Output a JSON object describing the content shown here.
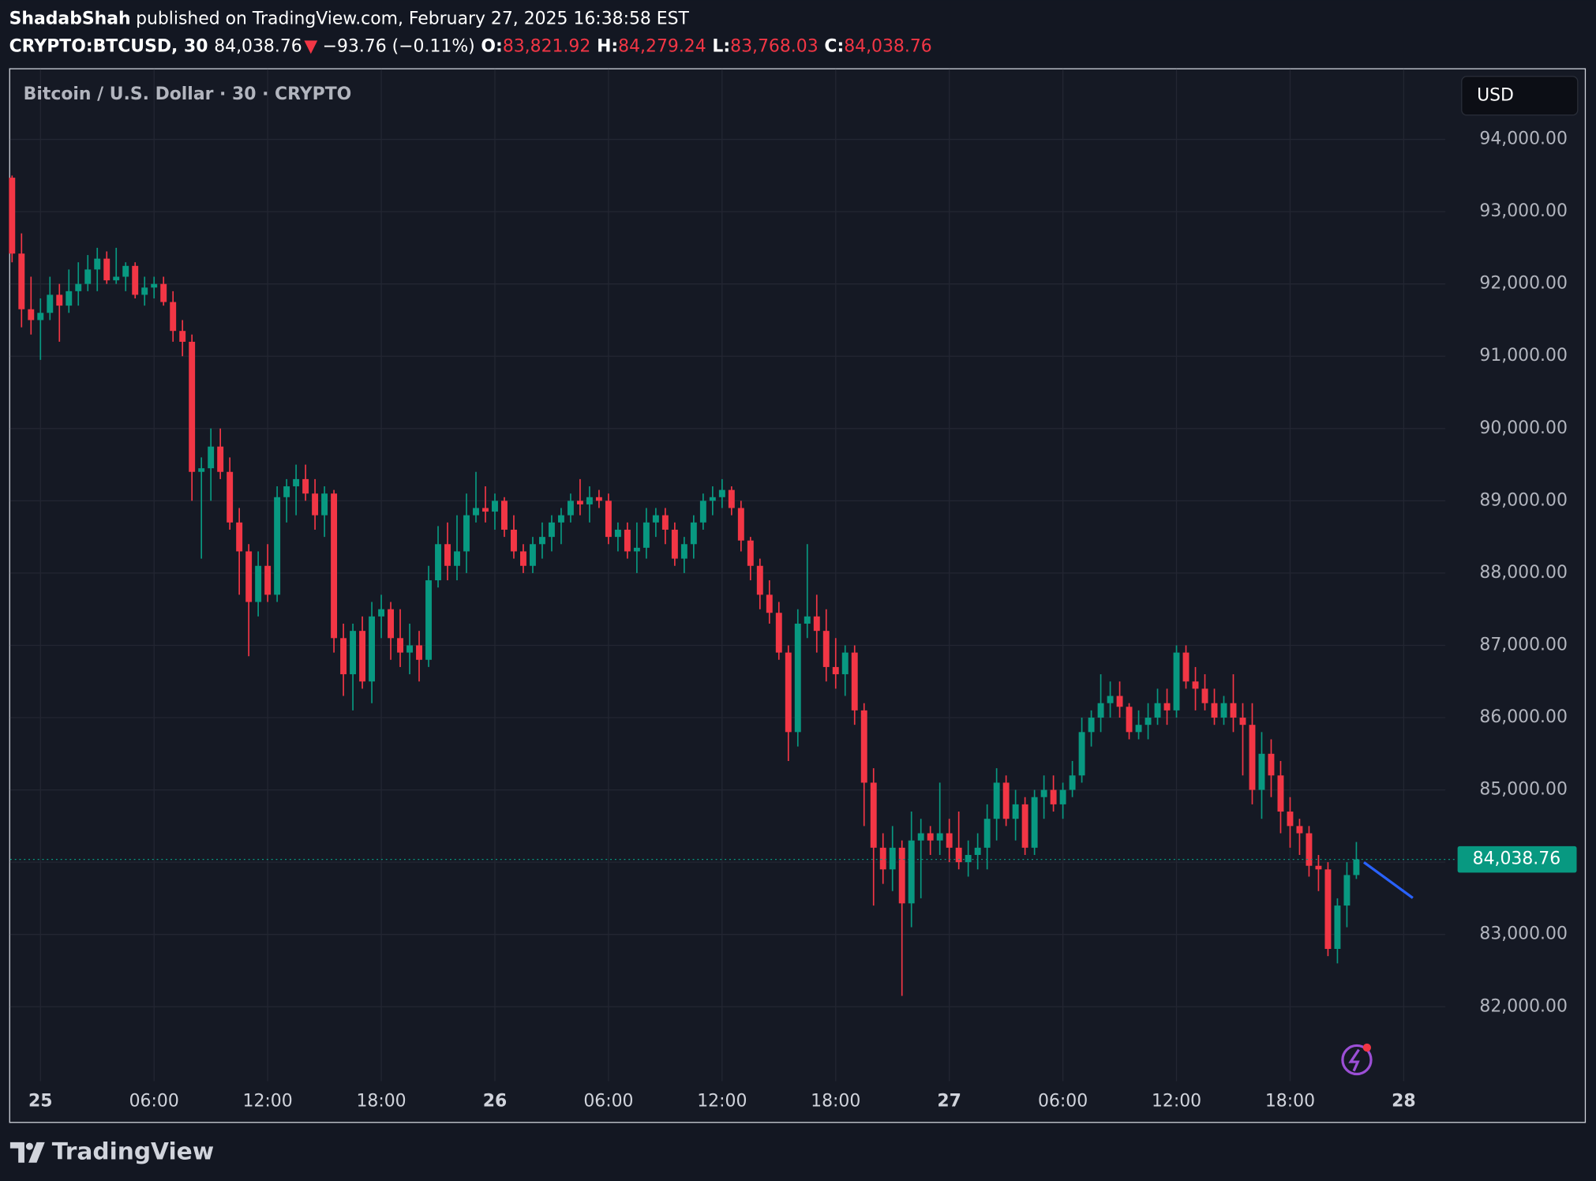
{
  "header": {
    "author": "ShadabShah",
    "published": "published on TradingView.com, February 27, 2025 16:38:58 EST",
    "symbol": "CRYPTO:BTCUSD, 30",
    "price": "84,038.76",
    "arrow": "▼",
    "change": "−93.76 (−0.11%)",
    "o_label": "O:",
    "o": "83,821.92",
    "h_label": "H:",
    "h": "84,279.24",
    "l_label": "L:",
    "l": "83,768.03",
    "c_label": "C:",
    "c": "84,038.76"
  },
  "chart_data": {
    "type": "candlestick",
    "title": "Bitcoin / U.S. Dollar · 30 · CRYPTO",
    "currency": "USD",
    "up_color": "#089981",
    "down_color": "#f23645",
    "grid": true,
    "last_price_label": "84,038.76",
    "open": [
      93470,
      92420,
      91650,
      91500,
      91600,
      91850,
      91700,
      91900,
      92000,
      92200,
      92350,
      92050,
      92100,
      92250,
      91850,
      91950,
      92000,
      91750,
      91350,
      91200,
      89400,
      89450,
      89750,
      89400,
      88700,
      88300,
      87600,
      88100,
      87700,
      89050,
      89200,
      89300,
      89100,
      88800,
      89100,
      87100,
      86600,
      87200,
      86500,
      87400,
      87500,
      87100,
      86900,
      87000,
      86800,
      87900,
      88400,
      88100,
      88300,
      88800,
      88900,
      88850,
      89000,
      88600,
      88300,
      88100,
      88400,
      88500,
      88700,
      88800,
      89000,
      88950,
      89050,
      89000,
      88500,
      88600,
      88300,
      88350,
      88700,
      88800,
      88600,
      88200,
      88400,
      88700,
      89000,
      89050,
      89150,
      88900,
      88450,
      88100,
      87700,
      87450,
      86900,
      85800,
      87300,
      87400,
      87200,
      86700,
      86600,
      86900,
      86100,
      85100,
      84200,
      83900,
      84200,
      83430,
      84300,
      84400,
      84300,
      84400,
      84200,
      84000,
      84100,
      84200,
      84600,
      85100,
      84600,
      84800,
      84200,
      84900,
      85000,
      84800,
      85000,
      85200,
      85800,
      86000,
      86200,
      86300,
      86150,
      85800,
      85900,
      86000,
      86200,
      86100,
      86900,
      86500,
      86400,
      86200,
      86000,
      86200,
      86000,
      85900,
      85000,
      85500,
      85200,
      84700,
      84500,
      84400,
      83950,
      83900,
      82800,
      83400,
      83821.92
    ],
    "high": [
      93500,
      92700,
      92100,
      91800,
      92100,
      92000,
      92200,
      92300,
      92400,
      92500,
      92450,
      92500,
      92300,
      92300,
      92100,
      92100,
      92100,
      91900,
      91500,
      91300,
      89600,
      90000,
      90000,
      89600,
      88900,
      88400,
      88300,
      88400,
      89200,
      89300,
      89500,
      89500,
      89300,
      89200,
      89150,
      87300,
      87300,
      87400,
      87600,
      87700,
      87600,
      87500,
      87300,
      87200,
      88100,
      88650,
      88700,
      88800,
      89100,
      89400,
      89200,
      89100,
      89050,
      88800,
      88400,
      88500,
      88700,
      88800,
      88900,
      89100,
      89300,
      89200,
      89150,
      89100,
      88700,
      88700,
      88700,
      88900,
      88900,
      88900,
      88700,
      88500,
      88800,
      89100,
      89200,
      89300,
      89200,
      89000,
      88500,
      88200,
      87900,
      87600,
      87000,
      87500,
      88400,
      87700,
      87500,
      87100,
      87000,
      87000,
      86200,
      85300,
      84400,
      84500,
      84300,
      84700,
      84600,
      84500,
      85100,
      84600,
      84700,
      84300,
      84400,
      84800,
      85300,
      85200,
      85000,
      84900,
      85000,
      85200,
      85200,
      85100,
      85400,
      86000,
      86100,
      86600,
      86500,
      86500,
      86200,
      86100,
      86200,
      86400,
      86400,
      87000,
      87000,
      86700,
      86600,
      86400,
      86300,
      86600,
      86200,
      86200,
      85800,
      85700,
      85400,
      84900,
      84600,
      84500,
      84100,
      84000,
      83500,
      84000,
      84279.24
    ],
    "low": [
      92300,
      91400,
      91300,
      90950,
      91500,
      91200,
      91600,
      91700,
      91900,
      91900,
      92000,
      92000,
      91900,
      91800,
      91700,
      91800,
      91700,
      91200,
      91000,
      89000,
      88200,
      89000,
      89300,
      88600,
      87700,
      86850,
      87400,
      87600,
      87600,
      88700,
      88800,
      89000,
      88600,
      88500,
      86900,
      86300,
      86100,
      86400,
      86200,
      87100,
      86800,
      86700,
      86600,
      86500,
      86700,
      87800,
      87900,
      87900,
      88000,
      88700,
      88700,
      88600,
      88500,
      88200,
      88000,
      88000,
      88200,
      88300,
      88400,
      88700,
      88800,
      88700,
      88900,
      88400,
      88300,
      88200,
      88000,
      88200,
      88500,
      88400,
      88100,
      88000,
      88200,
      88600,
      88800,
      88900,
      88800,
      88300,
      87900,
      87500,
      87300,
      86800,
      85400,
      85600,
      87100,
      86900,
      86500,
      86400,
      86300,
      85900,
      84500,
      83400,
      83700,
      83600,
      82150,
      83100,
      83500,
      84100,
      84100,
      84000,
      83900,
      83800,
      83900,
      83900,
      84300,
      84500,
      84300,
      84100,
      84100,
      84600,
      84700,
      84600,
      84900,
      85100,
      85600,
      85800,
      86000,
      86000,
      85700,
      85700,
      85700,
      85900,
      85900,
      86000,
      86400,
      86100,
      86100,
      85900,
      85900,
      85800,
      85200,
      84800,
      84600,
      84900,
      84400,
      84200,
      84100,
      83800,
      83600,
      82700,
      82600,
      83100,
      83768.03
    ],
    "close": [
      92420,
      91650,
      91500,
      91600,
      91850,
      91700,
      91900,
      92000,
      92200,
      92350,
      92050,
      92100,
      92250,
      91850,
      91950,
      92000,
      91750,
      91350,
      91200,
      89400,
      89450,
      89750,
      89400,
      88700,
      88300,
      87600,
      88100,
      87700,
      89050,
      89200,
      89300,
      89100,
      88800,
      89100,
      87100,
      86600,
      87200,
      86500,
      87400,
      87500,
      87100,
      86900,
      87000,
      86800,
      87900,
      88400,
      88100,
      88300,
      88800,
      88900,
      88850,
      89000,
      88600,
      88300,
      88100,
      88400,
      88500,
      88700,
      88800,
      89000,
      88950,
      89050,
      89000,
      88500,
      88600,
      88300,
      88350,
      88700,
      88800,
      88600,
      88200,
      88400,
      88700,
      89000,
      89050,
      89150,
      88900,
      88450,
      88100,
      87700,
      87450,
      86900,
      85800,
      87300,
      87400,
      87200,
      86700,
      86600,
      86900,
      86100,
      85100,
      84200,
      83900,
      84200,
      83430,
      84300,
      84400,
      84300,
      84400,
      84200,
      84000,
      84100,
      84200,
      84600,
      85100,
      84600,
      84800,
      84200,
      84900,
      85000,
      84800,
      85000,
      85200,
      85800,
      86000,
      86200,
      86300,
      86150,
      85800,
      85900,
      86000,
      86200,
      86100,
      86900,
      86500,
      86400,
      86200,
      86000,
      86200,
      86000,
      85900,
      85000,
      85500,
      85200,
      84700,
      84500,
      84400,
      83950,
      83900,
      82800,
      83400,
      83821.92,
      84038.76
    ],
    "xlim": [
      -0.2,
      151.4
    ],
    "ylim": [
      80970,
      94970
    ],
    "xticks": [
      {
        "value": 3,
        "label": "25"
      },
      {
        "value": 15,
        "label": "06:00"
      },
      {
        "value": 27,
        "label": "12:00"
      },
      {
        "value": 39,
        "label": "18:00"
      },
      {
        "value": 51,
        "label": "26"
      },
      {
        "value": 63,
        "label": "06:00"
      },
      {
        "value": 75,
        "label": "12:00"
      },
      {
        "value": 87,
        "label": "18:00"
      },
      {
        "value": 99,
        "label": "27"
      },
      {
        "value": 111,
        "label": "06:00"
      },
      {
        "value": 123,
        "label": "12:00"
      },
      {
        "value": 135,
        "label": "18:00"
      },
      {
        "value": 147,
        "label": "28"
      }
    ],
    "yticks": [
      {
        "value": 82000,
        "label": "82,000.00"
      },
      {
        "value": 83000,
        "label": "83,000.00"
      },
      {
        "value": 84000,
        "label": "84,000.00"
      },
      {
        "value": 85000,
        "label": "85,000.00"
      },
      {
        "value": 86000,
        "label": "86,000.00"
      },
      {
        "value": 87000,
        "label": "87,000.00"
      },
      {
        "value": 88000,
        "label": "88,000.00"
      },
      {
        "value": 89000,
        "label": "89,000.00"
      },
      {
        "value": 90000,
        "label": "90,000.00"
      },
      {
        "value": 91000,
        "label": "91,000.00"
      },
      {
        "value": 92000,
        "label": "92,000.00"
      },
      {
        "value": 93000,
        "label": "93,000.00"
      },
      {
        "value": 94000,
        "label": "94,000.00"
      }
    ]
  },
  "footer": {
    "brand": "TradingView"
  }
}
